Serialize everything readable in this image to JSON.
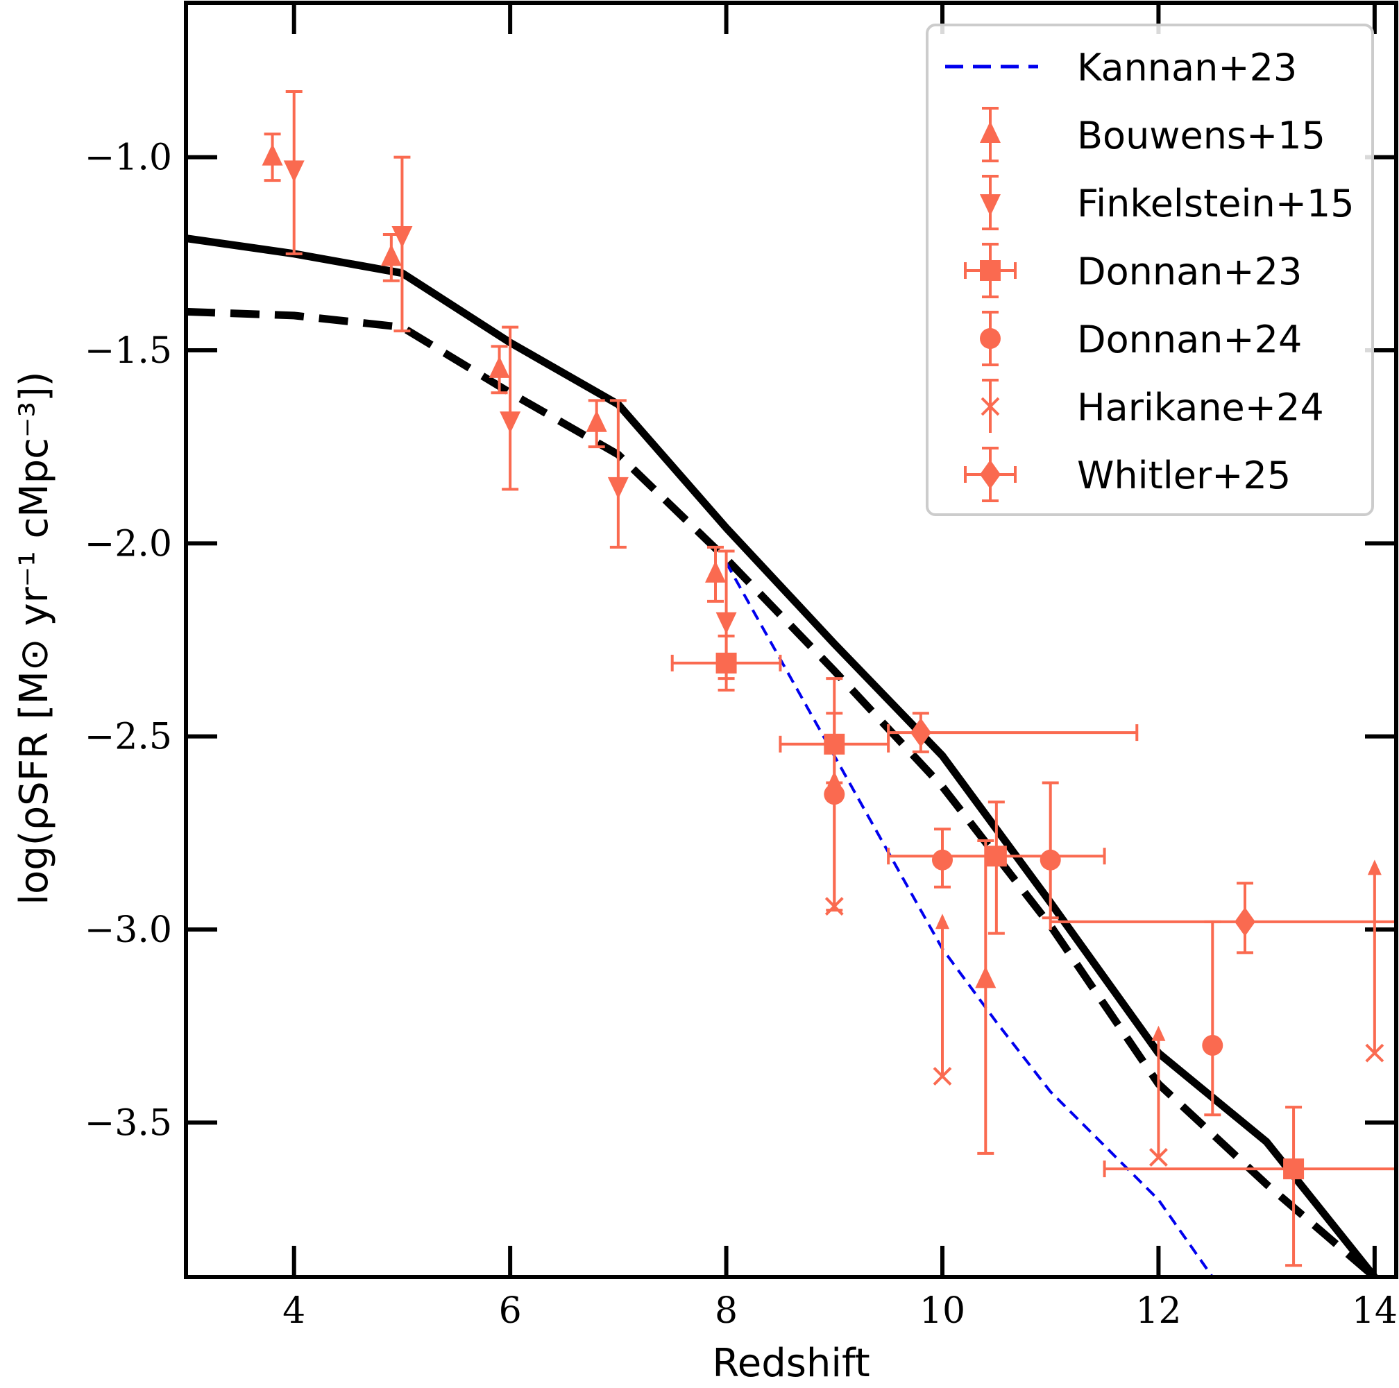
{
  "chart_data": {
    "type": "line+scatter",
    "xlabel": "Redshift",
    "ylabel": "log(ρSFR [M⊙ yr⁻¹ cMpc⁻³])",
    "xlim": [
      3,
      14.2
    ],
    "ylim": [
      -3.9,
      -0.6
    ],
    "x_ticks": [
      4,
      6,
      8,
      10,
      12,
      14
    ],
    "y_ticks": [
      -1.0,
      -1.5,
      -2.0,
      -2.5,
      -3.0,
      -3.5
    ],
    "x_tick_labels": [
      "4",
      "6",
      "8",
      "10",
      "12",
      "14"
    ],
    "y_tick_labels": [
      "−1.0",
      "−1.5",
      "−2.0",
      "−2.5",
      "−3.0",
      "−3.5"
    ],
    "grid": false,
    "legend_position": "top-right",
    "colors": {
      "model": "#000000",
      "kannan": "#0000ee",
      "obs": "#fa6a50"
    },
    "model_lines": [
      {
        "name": "model-solid",
        "style": "solid",
        "x": [
          3,
          4,
          5,
          6,
          7,
          8,
          9,
          10,
          11,
          12,
          13,
          14
        ],
        "y": [
          -1.21,
          -1.25,
          -1.3,
          -1.48,
          -1.64,
          -1.96,
          -2.26,
          -2.55,
          -2.93,
          -3.32,
          -3.55,
          -3.9
        ]
      },
      {
        "name": "model-dashed",
        "style": "dashed",
        "x": [
          3,
          4,
          5,
          6,
          7,
          8,
          9,
          10,
          11,
          12,
          13,
          14
        ],
        "y": [
          -1.4,
          -1.41,
          -1.44,
          -1.61,
          -1.77,
          -2.04,
          -2.33,
          -2.63,
          -2.99,
          -3.4,
          -3.66,
          -3.9
        ]
      }
    ],
    "series": [
      {
        "name": "Kannan+23",
        "kind": "line",
        "color_key": "kannan",
        "x": [
          8,
          8.5,
          9,
          9.5,
          10,
          10.5,
          11,
          11.5,
          12,
          12.5
        ],
        "y": [
          -2.05,
          -2.3,
          -2.55,
          -2.8,
          -3.05,
          -3.24,
          -3.42,
          -3.56,
          -3.7,
          -3.9
        ]
      },
      {
        "name": "Bouwens+15",
        "marker": "triangle-up",
        "points": [
          {
            "x": 3.8,
            "y": -1.0,
            "ylo": 0.06,
            "yhi": 0.06
          },
          {
            "x": 4.9,
            "y": -1.26,
            "ylo": 0.06,
            "yhi": 0.06
          },
          {
            "x": 5.9,
            "y": -1.55,
            "ylo": 0.06,
            "yhi": 0.06
          },
          {
            "x": 6.8,
            "y": -1.69,
            "ylo": 0.06,
            "yhi": 0.06
          },
          {
            "x": 7.9,
            "y": -2.08,
            "ylo": 0.07,
            "yhi": 0.07
          },
          {
            "x": 10.4,
            "y": -3.13,
            "ylo": 0.45,
            "yhi": 0.36
          }
        ]
      },
      {
        "name": "Finkelstein+15",
        "marker": "triangle-down",
        "points": [
          {
            "x": 4.0,
            "y": -1.03,
            "ylo": 0.22,
            "yhi": 0.2
          },
          {
            "x": 5.0,
            "y": -1.2,
            "ylo": 0.25,
            "yhi": 0.2
          },
          {
            "x": 6.0,
            "y": -1.68,
            "ylo": 0.18,
            "yhi": 0.24
          },
          {
            "x": 7.0,
            "y": -1.85,
            "ylo": 0.16,
            "yhi": 0.22
          },
          {
            "x": 8.0,
            "y": -2.2,
            "ylo": 0.15,
            "yhi": 0.18
          }
        ]
      },
      {
        "name": "Donnan+23",
        "marker": "square",
        "points": [
          {
            "x": 8.0,
            "y": -2.31,
            "ylo": 0.07,
            "yhi": 0.07,
            "xlo": 0.5,
            "xhi": 0.5
          },
          {
            "x": 9.0,
            "y": -2.52,
            "ylo": 0.1,
            "yhi": 0.08,
            "xlo": 0.5,
            "xhi": 0.5
          },
          {
            "x": 10.5,
            "y": -2.81,
            "ylo": 0.2,
            "yhi": 0.14,
            "xlo": 1.0,
            "xhi": 1.0
          },
          {
            "x": 13.25,
            "y": -3.62,
            "ylo": 0.25,
            "yhi": 0.16,
            "xlo": 1.75,
            "xhi": 1.75
          }
        ]
      },
      {
        "name": "Donnan+24",
        "marker": "circle",
        "points": [
          {
            "x": 9.0,
            "y": -2.65,
            "ylo": 0.3,
            "yhi": 0.3
          },
          {
            "x": 10.0,
            "y": -2.82,
            "ylo": 0.07,
            "yhi": 0.08
          },
          {
            "x": 11.0,
            "y": -2.82,
            "ylo": 0.15,
            "yhi": 0.2
          },
          {
            "x": 12.5,
            "y": -3.3,
            "ylo": 0.18,
            "yhi": 0.32
          }
        ]
      },
      {
        "name": "Harikane+24",
        "marker": "x",
        "lower_limit": true,
        "points": [
          {
            "x": 9.0,
            "y": -2.94,
            "to": -2.6
          },
          {
            "x": 10.0,
            "y": -3.38,
            "to": -2.97
          },
          {
            "x": 12.0,
            "y": -3.59,
            "to": -3.26
          },
          {
            "x": 14.0,
            "y": -3.32,
            "to": -2.83
          }
        ]
      },
      {
        "name": "Whitler+25",
        "marker": "diamond",
        "points": [
          {
            "x": 9.8,
            "y": -2.49,
            "ylo": 0.05,
            "yhi": 0.05,
            "xlo": 0.3,
            "xhi": 2.0
          },
          {
            "x": 12.8,
            "y": -2.98,
            "ylo": 0.08,
            "yhi": 0.1,
            "xlo": 1.8,
            "xhi": 1.4
          }
        ]
      }
    ]
  }
}
